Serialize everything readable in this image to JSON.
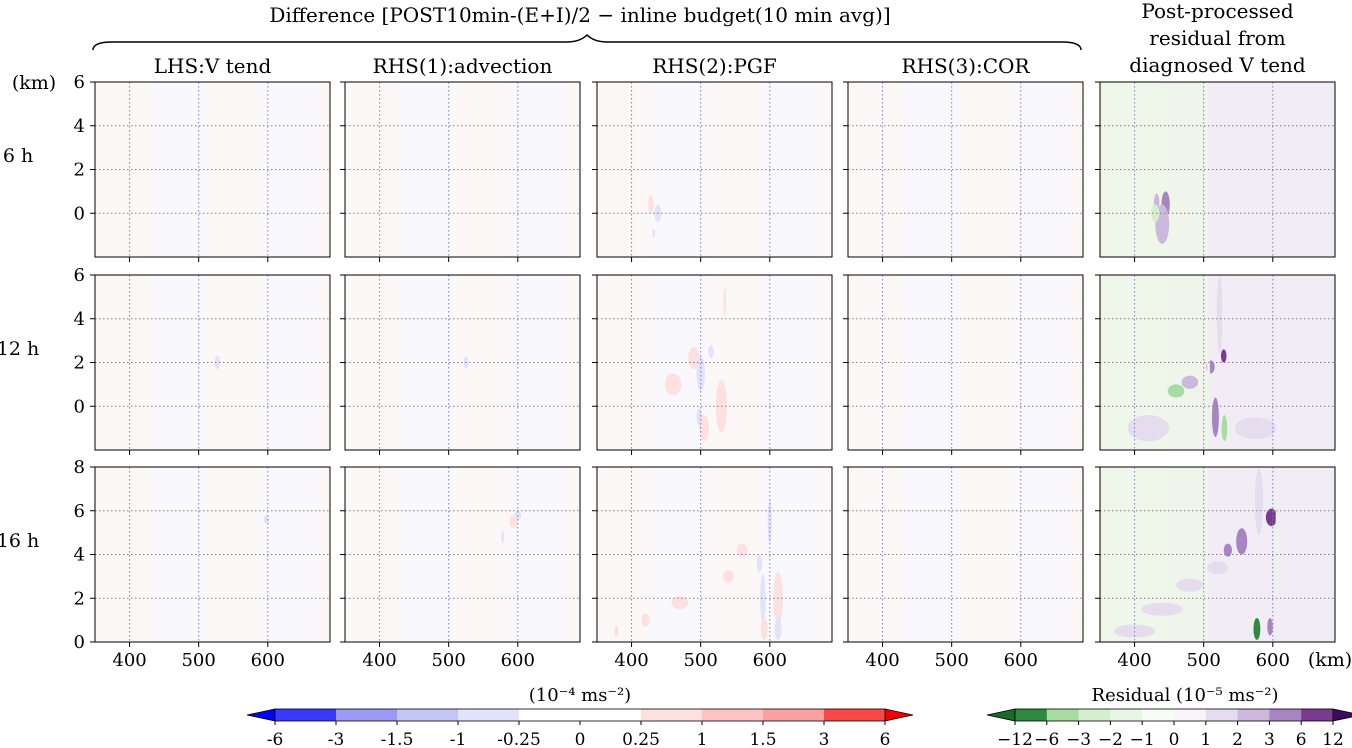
{
  "figure": {
    "group_title": "Difference [POST10min-(E+I)/2 − inline budget(10 min avg)]",
    "column_titles": [
      [
        "LHS:V tend"
      ],
      [
        "RHS(1):advection"
      ],
      [
        "RHS(2):PGF"
      ],
      [
        "RHS(3):COR"
      ],
      [
        "Post-processed",
        "residual from",
        "diagnosed V tend"
      ]
    ],
    "row_labels": [
      "6 h",
      "12 h",
      "16 h"
    ],
    "y_unit": "(km)",
    "x_unit": "(km)"
  },
  "chart_data": {
    "type": "heatmap",
    "x_ticks": [
      400,
      500,
      600
    ],
    "xlim": [
      350,
      690
    ],
    "rows": [
      {
        "label": "6 h",
        "ylim": [
          -2,
          6
        ],
        "y_ticks": [
          0,
          2,
          4,
          6
        ]
      },
      {
        "label": "12 h",
        "ylim": [
          -2,
          6
        ],
        "y_ticks": [
          0,
          2,
          4,
          6
        ]
      },
      {
        "label": "16 h",
        "ylim": [
          0,
          8
        ],
        "y_ticks": [
          0,
          2,
          4,
          6,
          8
        ]
      }
    ],
    "grid": "dotted",
    "colorbars": [
      {
        "label": "(10⁻⁴ ms⁻²)",
        "ticks": [
          "-6",
          "-3",
          "-1.5",
          "-1",
          "-0.25",
          "0",
          "0.25",
          "1",
          "1.5",
          "3",
          "6"
        ],
        "colors": [
          "#3a3afd",
          "#9b9bf5",
          "#c5c5f5",
          "#e2e2fb",
          "#ffffff",
          "#ffffff",
          "#fde0e0",
          "#fdc3c3",
          "#fba0a0",
          "#fa4848"
        ],
        "extend_low": "#0000fd",
        "extend_high": "#f00000"
      },
      {
        "label": "Residual (10⁻⁵ ms⁻²)",
        "ticks": [
          "−12",
          "−6",
          "−3",
          "−2",
          "−1",
          "0",
          "1",
          "2",
          "3",
          "6",
          "12"
        ],
        "colors": [
          "#2e8a3f",
          "#a7dca2",
          "#d3efcd",
          "#e9f6e5",
          "#f8fcf6",
          "#f8f5fa",
          "#e5dcee",
          "#ccb8dc",
          "#a685c2",
          "#7a3c8e"
        ],
        "extend_low": "#1b6a2b",
        "extend_high": "#3c0a5e"
      }
    ],
    "features": [
      {
        "panel": [
          0,
          2
        ],
        "x": 428,
        "y": 0.4,
        "rx": 4,
        "ry": 0.4,
        "value": 0.4
      },
      {
        "panel": [
          0,
          2
        ],
        "x": 438,
        "y": 0.0,
        "rx": 5,
        "ry": 0.4,
        "value": -0.4
      },
      {
        "panel": [
          0,
          2
        ],
        "x": 432,
        "y": -0.9,
        "rx": 2,
        "ry": 0.2,
        "value": -0.3
      },
      {
        "panel": [
          0,
          4
        ],
        "x": 445,
        "y": 0.4,
        "rx": 6,
        "ry": 0.6,
        "value": 4
      },
      {
        "panel": [
          0,
          4
        ],
        "x": 432,
        "y": 0.5,
        "rx": 4,
        "ry": 0.4,
        "value": 3
      },
      {
        "panel": [
          0,
          4
        ],
        "x": 440,
        "y": -0.5,
        "rx": 10,
        "ry": 0.9,
        "value": 2.5
      },
      {
        "panel": [
          0,
          4
        ],
        "x": 430,
        "y": 0.0,
        "rx": 6,
        "ry": 0.4,
        "value": -2
      },
      {
        "panel": [
          1,
          0
        ],
        "x": 527,
        "y": 2.0,
        "rx": 4,
        "ry": 0.3,
        "value": -0.3
      },
      {
        "panel": [
          1,
          1
        ],
        "x": 525,
        "y": 2.0,
        "rx": 3,
        "ry": 0.3,
        "value": -0.3
      },
      {
        "panel": [
          1,
          2
        ],
        "x": 490,
        "y": 2.2,
        "rx": 8,
        "ry": 0.5,
        "value": 0.5
      },
      {
        "panel": [
          1,
          2
        ],
        "x": 460,
        "y": 1.0,
        "rx": 12,
        "ry": 0.5,
        "value": 0.4
      },
      {
        "panel": [
          1,
          2
        ],
        "x": 500,
        "y": 1.5,
        "rx": 6,
        "ry": 0.8,
        "value": -0.4
      },
      {
        "panel": [
          1,
          2
        ],
        "x": 505,
        "y": -1.0,
        "rx": 7,
        "ry": 0.6,
        "value": 0.5
      },
      {
        "panel": [
          1,
          2
        ],
        "x": 530,
        "y": 0.0,
        "rx": 8,
        "ry": 1.2,
        "value": 0.6
      },
      {
        "panel": [
          1,
          2
        ],
        "x": 498,
        "y": -0.5,
        "rx": 4,
        "ry": 0.4,
        "value": -0.5
      },
      {
        "panel": [
          1,
          2
        ],
        "x": 515,
        "y": 2.5,
        "rx": 4,
        "ry": 0.3,
        "value": -0.3
      },
      {
        "panel": [
          1,
          2
        ],
        "x": 535,
        "y": 4.8,
        "rx": 2,
        "ry": 0.7,
        "value": 0.3
      },
      {
        "panel": [
          1,
          4
        ],
        "x": 529,
        "y": 2.3,
        "rx": 4,
        "ry": 0.3,
        "value": 12
      },
      {
        "panel": [
          1,
          4
        ],
        "x": 510,
        "y": 1.8,
        "rx": 6,
        "ry": 0.3,
        "value": 4
      },
      {
        "panel": [
          1,
          4
        ],
        "x": 480,
        "y": 1.1,
        "rx": 12,
        "ry": 0.3,
        "value": 3
      },
      {
        "panel": [
          1,
          4
        ],
        "x": 460,
        "y": 0.7,
        "rx": 12,
        "ry": 0.3,
        "value": -3
      },
      {
        "panel": [
          1,
          4
        ],
        "x": 517,
        "y": -0.5,
        "rx": 5,
        "ry": 0.9,
        "value": 5
      },
      {
        "panel": [
          1,
          4
        ],
        "x": 530,
        "y": -1.0,
        "rx": 4,
        "ry": 0.6,
        "value": -5
      },
      {
        "panel": [
          1,
          4
        ],
        "x": 575,
        "y": -1.0,
        "rx": 30,
        "ry": 0.5,
        "value": 2
      },
      {
        "panel": [
          1,
          4
        ],
        "x": 420,
        "y": -1.0,
        "rx": 30,
        "ry": 0.6,
        "value": 2
      },
      {
        "panel": [
          1,
          4
        ],
        "x": 523,
        "y": 4.2,
        "rx": 4,
        "ry": 1.8,
        "value": 1.5
      },
      {
        "panel": [
          1,
          4
        ],
        "x": 507,
        "y": 1.5,
        "rx": 2,
        "ry": 3.5,
        "value": -1.5
      },
      {
        "panel": [
          2,
          0
        ],
        "x": 598,
        "y": 5.6,
        "rx": 4,
        "ry": 0.2,
        "value": -0.3
      },
      {
        "panel": [
          2,
          1
        ],
        "x": 594,
        "y": 5.5,
        "rx": 6,
        "ry": 0.3,
        "value": 0.3
      },
      {
        "panel": [
          2,
          1
        ],
        "x": 600,
        "y": 5.8,
        "rx": 5,
        "ry": 0.2,
        "value": -0.3
      },
      {
        "panel": [
          2,
          1
        ],
        "x": 578,
        "y": 4.8,
        "rx": 2,
        "ry": 0.3,
        "value": -0.3
      },
      {
        "panel": [
          2,
          2
        ],
        "x": 600,
        "y": 5.5,
        "rx": 3,
        "ry": 1.0,
        "value": -0.4
      },
      {
        "panel": [
          2,
          2
        ],
        "x": 585,
        "y": 3.6,
        "rx": 4,
        "ry": 0.4,
        "value": -0.3
      },
      {
        "panel": [
          2,
          2
        ],
        "x": 590,
        "y": 2.0,
        "rx": 4,
        "ry": 1.1,
        "value": -0.4
      },
      {
        "panel": [
          2,
          2
        ],
        "x": 612,
        "y": 2.0,
        "rx": 7,
        "ry": 1.2,
        "value": 0.5
      },
      {
        "panel": [
          2,
          2
        ],
        "x": 592,
        "y": 0.6,
        "rx": 5,
        "ry": 0.5,
        "value": 0.5
      },
      {
        "panel": [
          2,
          2
        ],
        "x": 612,
        "y": 0.6,
        "rx": 5,
        "ry": 0.5,
        "value": -0.4
      },
      {
        "panel": [
          2,
          2
        ],
        "x": 560,
        "y": 4.2,
        "rx": 8,
        "ry": 0.3,
        "value": 0.3
      },
      {
        "panel": [
          2,
          2
        ],
        "x": 540,
        "y": 3.0,
        "rx": 8,
        "ry": 0.3,
        "value": 0.3
      },
      {
        "panel": [
          2,
          2
        ],
        "x": 470,
        "y": 1.8,
        "rx": 12,
        "ry": 0.3,
        "value": 0.3
      },
      {
        "panel": [
          2,
          2
        ],
        "x": 420,
        "y": 1.0,
        "rx": 6,
        "ry": 0.3,
        "value": 0.3
      },
      {
        "panel": [
          2,
          2
        ],
        "x": 378,
        "y": 0.5,
        "rx": 3,
        "ry": 0.25,
        "value": 0.3
      },
      {
        "panel": [
          2,
          4
        ],
        "x": 598,
        "y": 5.7,
        "rx": 8,
        "ry": 0.4,
        "value": 12
      },
      {
        "panel": [
          2,
          4
        ],
        "x": 580,
        "y": 6.4,
        "rx": 6,
        "ry": 1.5,
        "value": 2
      },
      {
        "panel": [
          2,
          4
        ],
        "x": 555,
        "y": 4.6,
        "rx": 8,
        "ry": 0.6,
        "value": 4
      },
      {
        "panel": [
          2,
          4
        ],
        "x": 535,
        "y": 4.2,
        "rx": 6,
        "ry": 0.3,
        "value": 4
      },
      {
        "panel": [
          2,
          4
        ],
        "x": 520,
        "y": 3.4,
        "rx": 15,
        "ry": 0.3,
        "value": 2
      },
      {
        "panel": [
          2,
          4
        ],
        "x": 480,
        "y": 2.6,
        "rx": 20,
        "ry": 0.3,
        "value": 2
      },
      {
        "panel": [
          2,
          4
        ],
        "x": 440,
        "y": 1.5,
        "rx": 30,
        "ry": 0.3,
        "value": 2
      },
      {
        "panel": [
          2,
          4
        ],
        "x": 400,
        "y": 0.5,
        "rx": 30,
        "ry": 0.3,
        "value": 2
      },
      {
        "panel": [
          2,
          4
        ],
        "x": 577,
        "y": 0.6,
        "rx": 5,
        "ry": 0.5,
        "value": -6
      },
      {
        "panel": [
          2,
          4
        ],
        "x": 596,
        "y": 0.7,
        "rx": 4,
        "ry": 0.4,
        "value": 6
      },
      {
        "panel": [
          2,
          4
        ],
        "x": 606,
        "y": 4.5,
        "rx": 2,
        "ry": 3.0,
        "value": -1.5
      }
    ]
  }
}
